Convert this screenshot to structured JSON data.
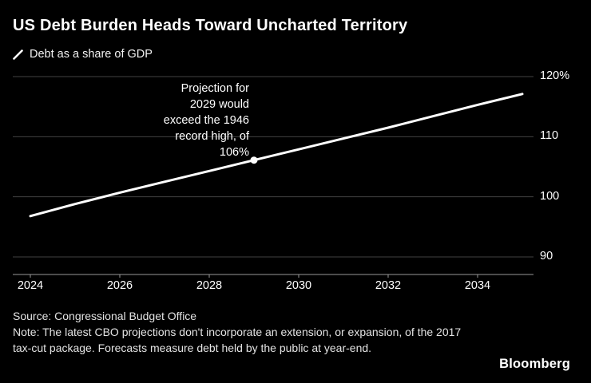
{
  "colors": {
    "background": "#000000",
    "text": "#ffffff",
    "muted_text": "#e3e3e3",
    "grid": "#424242",
    "axis": "#989898",
    "line": "#ffffff"
  },
  "header": {
    "title": "US Debt Burden Heads Toward Uncharted Territory"
  },
  "legend": {
    "series_label": "Debt as a share of GDP"
  },
  "chart_data": {
    "type": "line",
    "title": "US Debt Burden Heads Toward Uncharted Territory",
    "series_name": "Debt as a share of GDP",
    "x": [
      2024,
      2025,
      2026,
      2027,
      2028,
      2029,
      2030,
      2031,
      2032,
      2033,
      2034,
      2035
    ],
    "values": [
      96.8,
      98.8,
      100.7,
      102.5,
      104.3,
      106.1,
      107.9,
      109.7,
      111.5,
      113.4,
      115.3,
      117.1
    ],
    "unit": "% of GDP",
    "ylim": [
      90,
      120
    ],
    "grid": true,
    "y_axis_side": "right",
    "legend_position": "top-left",
    "yticks": [
      {
        "value": 120,
        "label": "120%"
      },
      {
        "value": 110,
        "label": "110"
      },
      {
        "value": 100,
        "label": "100"
      },
      {
        "value": 90,
        "label": "90"
      }
    ],
    "xticks": [
      {
        "value": 2024,
        "label": "2024"
      },
      {
        "value": 2026,
        "label": "2026"
      },
      {
        "value": 2028,
        "label": "2028"
      },
      {
        "value": 2030,
        "label": "2030"
      },
      {
        "value": 2032,
        "label": "2032"
      },
      {
        "value": 2034,
        "label": "2034"
      }
    ],
    "annotation": {
      "text": "Projection for\n2029 would\nexceed the 1946\nrecord high, of\n106%",
      "x": 2029,
      "y": 106.1
    }
  },
  "footer": {
    "source": "Source: Congressional Budget Office",
    "note": "Note: The latest CBO projections don't incorporate an extension, or expansion, of the 2017 tax-cut package. Forecasts measure debt held by the public at year-end.",
    "brand": "Bloomberg"
  }
}
